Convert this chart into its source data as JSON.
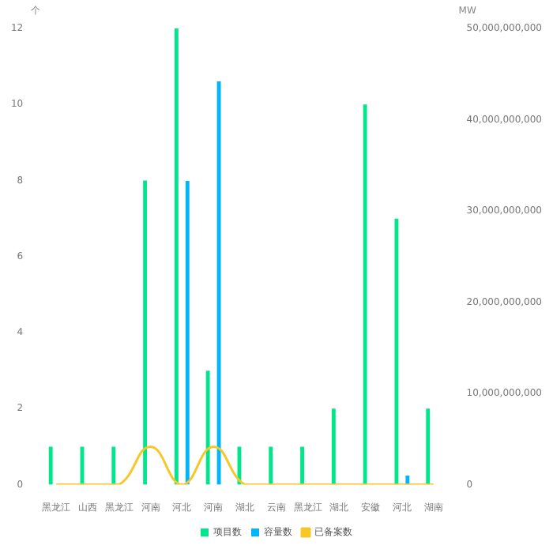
{
  "chart_data": {
    "type": "bar",
    "ylabel": "个",
    "y2label": "MW",
    "categories": [
      "黑龙江",
      "山西",
      "黑龙江",
      "河南",
      "河北",
      "河南",
      "湖北",
      "云南",
      "黑龙江",
      "湖北",
      "安徽",
      "河北",
      "湖南"
    ],
    "series": [
      {
        "name": "项目数",
        "color": "#00e68a",
        "values": [
          1,
          1,
          1,
          8,
          12,
          3,
          1,
          1,
          1,
          2,
          10,
          7,
          2
        ]
      },
      {
        "name": "容量数",
        "color": "#00b4ff",
        "axis": "y2",
        "values": [
          0,
          0,
          0,
          0,
          33300000000,
          44200000000,
          0,
          0,
          0,
          0,
          0,
          1000000000,
          0
        ]
      },
      {
        "name": "已备案数",
        "type": "line",
        "color": "#f7c72a",
        "values": [
          0,
          0,
          0,
          1,
          0,
          1,
          0,
          0,
          0,
          0,
          0,
          0,
          0
        ]
      }
    ],
    "ylim": [
      0,
      12
    ],
    "yticks": [
      0,
      2,
      4,
      6,
      8,
      10,
      12
    ],
    "y2lim": [
      0,
      50000000000
    ],
    "y2ticks": [
      0,
      {
        "value": 10000000000,
        "label": "10,000,000,000"
      },
      {
        "value": 20000000000,
        "label": "20,000,000,000"
      },
      {
        "value": 30000000000,
        "label": "30,000,000,000"
      },
      {
        "value": 40000000000,
        "label": "40,000,000,000"
      },
      {
        "value": 50000000000,
        "label": "50,000,000,000"
      }
    ],
    "grid": false,
    "legend": "bottom",
    "marker": "none"
  }
}
